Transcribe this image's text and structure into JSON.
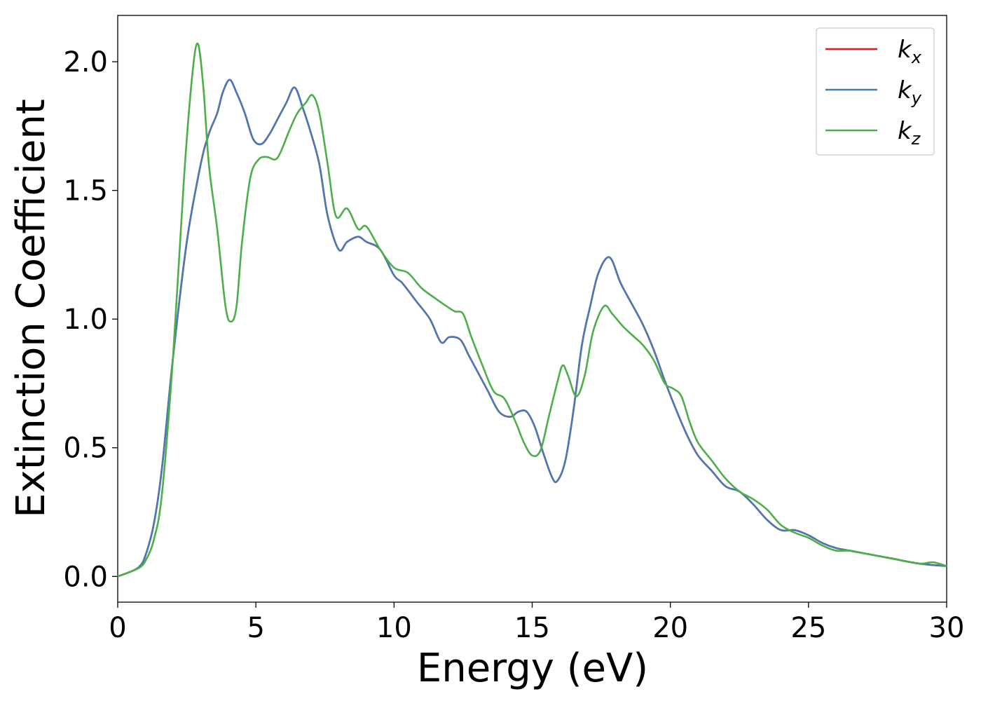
{
  "chart_data": {
    "type": "line",
    "xlabel": "Energy (eV)",
    "ylabel": "Extinction Coefficient",
    "xlim": [
      0,
      30
    ],
    "ylim": [
      -0.1,
      2.18
    ],
    "xticks": [
      "0",
      "5",
      "10",
      "15",
      "20",
      "25",
      "30"
    ],
    "yticks": [
      "0.0",
      "0.5",
      "1.0",
      "1.5",
      "2.0"
    ],
    "grid": false,
    "legend_position": "top-right",
    "series": [
      {
        "name": "k",
        "sub": "x",
        "color": "#e41a1c",
        "x": [
          0,
          0.5,
          0.8,
          1.0,
          1.3,
          1.6,
          2.0,
          2.5,
          3.0,
          3.3,
          3.6,
          3.8,
          4.05,
          4.3,
          4.6,
          4.9,
          5.2,
          5.5,
          5.8,
          6.1,
          6.4,
          6.7,
          7.0,
          7.3,
          7.6,
          8.0,
          8.3,
          8.7,
          9.0,
          9.5,
          10.0,
          10.3,
          10.8,
          11.3,
          11.7,
          12.0,
          12.4,
          12.7,
          13.0,
          13.4,
          13.8,
          14.2,
          14.5,
          14.8,
          15.1,
          15.4,
          15.7,
          15.9,
          16.2,
          16.5,
          16.8,
          17.1,
          17.4,
          17.8,
          18.2,
          18.6,
          19.0,
          19.4,
          19.8,
          20.2,
          20.6,
          21.0,
          21.5,
          22.0,
          22.5,
          23.0,
          23.5,
          24.0,
          24.5,
          25.0,
          25.5,
          26.0,
          26.5,
          27.0,
          28.0,
          29.0,
          30.0
        ],
        "y": [
          0.0,
          0.02,
          0.04,
          0.08,
          0.2,
          0.42,
          0.85,
          1.3,
          1.6,
          1.72,
          1.8,
          1.88,
          1.93,
          1.88,
          1.8,
          1.7,
          1.68,
          1.72,
          1.78,
          1.84,
          1.9,
          1.82,
          1.72,
          1.6,
          1.4,
          1.27,
          1.3,
          1.32,
          1.3,
          1.27,
          1.17,
          1.14,
          1.07,
          1.0,
          0.91,
          0.93,
          0.92,
          0.86,
          0.8,
          0.72,
          0.64,
          0.62,
          0.64,
          0.64,
          0.58,
          0.48,
          0.39,
          0.37,
          0.45,
          0.65,
          0.9,
          1.05,
          1.18,
          1.24,
          1.14,
          1.06,
          0.98,
          0.88,
          0.76,
          0.65,
          0.55,
          0.47,
          0.41,
          0.35,
          0.33,
          0.28,
          0.22,
          0.18,
          0.18,
          0.16,
          0.13,
          0.11,
          0.1,
          0.09,
          0.07,
          0.05,
          0.04
        ]
      },
      {
        "name": "k",
        "sub": "y",
        "color": "#4a7ab5",
        "x": [
          0,
          0.5,
          0.8,
          1.0,
          1.3,
          1.6,
          2.0,
          2.5,
          3.0,
          3.3,
          3.6,
          3.8,
          4.05,
          4.3,
          4.6,
          4.9,
          5.2,
          5.5,
          5.8,
          6.1,
          6.4,
          6.7,
          7.0,
          7.3,
          7.6,
          8.0,
          8.3,
          8.7,
          9.0,
          9.5,
          10.0,
          10.3,
          10.8,
          11.3,
          11.7,
          12.0,
          12.4,
          12.7,
          13.0,
          13.4,
          13.8,
          14.2,
          14.5,
          14.8,
          15.1,
          15.4,
          15.7,
          15.9,
          16.2,
          16.5,
          16.8,
          17.1,
          17.4,
          17.8,
          18.2,
          18.6,
          19.0,
          19.4,
          19.8,
          20.2,
          20.6,
          21.0,
          21.5,
          22.0,
          22.5,
          23.0,
          23.5,
          24.0,
          24.5,
          25.0,
          25.5,
          26.0,
          26.5,
          27.0,
          28.0,
          29.0,
          30.0
        ],
        "y": [
          0.0,
          0.02,
          0.04,
          0.08,
          0.2,
          0.42,
          0.85,
          1.3,
          1.6,
          1.72,
          1.8,
          1.88,
          1.93,
          1.88,
          1.8,
          1.7,
          1.68,
          1.72,
          1.78,
          1.84,
          1.9,
          1.82,
          1.72,
          1.6,
          1.4,
          1.27,
          1.3,
          1.32,
          1.3,
          1.27,
          1.17,
          1.14,
          1.07,
          1.0,
          0.91,
          0.93,
          0.92,
          0.86,
          0.8,
          0.72,
          0.64,
          0.62,
          0.64,
          0.64,
          0.58,
          0.48,
          0.39,
          0.37,
          0.45,
          0.65,
          0.9,
          1.05,
          1.18,
          1.24,
          1.14,
          1.06,
          0.98,
          0.88,
          0.76,
          0.65,
          0.55,
          0.47,
          0.41,
          0.35,
          0.33,
          0.28,
          0.22,
          0.18,
          0.18,
          0.16,
          0.13,
          0.11,
          0.1,
          0.09,
          0.07,
          0.05,
          0.04
        ]
      },
      {
        "name": "k",
        "sub": "z",
        "color": "#4daf4a",
        "x": [
          0,
          0.5,
          0.8,
          1.0,
          1.3,
          1.6,
          2.0,
          2.4,
          2.7,
          2.9,
          3.1,
          3.3,
          3.6,
          3.9,
          4.1,
          4.3,
          4.5,
          4.8,
          5.1,
          5.4,
          5.7,
          5.9,
          6.2,
          6.5,
          6.8,
          7.05,
          7.3,
          7.6,
          7.9,
          8.3,
          8.7,
          9.0,
          9.5,
          10.0,
          10.5,
          11.0,
          11.5,
          11.9,
          12.2,
          12.5,
          12.8,
          13.2,
          13.6,
          14.0,
          14.4,
          14.7,
          15.0,
          15.3,
          15.6,
          15.9,
          16.1,
          16.3,
          16.6,
          16.9,
          17.2,
          17.6,
          17.9,
          18.3,
          18.7,
          19.0,
          19.4,
          19.8,
          20.1,
          20.4,
          20.7,
          21.0,
          21.5,
          22.0,
          22.5,
          23.0,
          23.5,
          24.0,
          24.5,
          25.0,
          25.5,
          26.0,
          26.5,
          27.0,
          28.0,
          29.0,
          29.5,
          30.0
        ],
        "y": [
          0.0,
          0.02,
          0.035,
          0.06,
          0.14,
          0.32,
          0.85,
          1.55,
          1.95,
          2.07,
          1.9,
          1.6,
          1.35,
          1.05,
          0.99,
          1.05,
          1.3,
          1.55,
          1.62,
          1.63,
          1.62,
          1.65,
          1.73,
          1.8,
          1.84,
          1.87,
          1.8,
          1.6,
          1.4,
          1.43,
          1.35,
          1.36,
          1.27,
          1.2,
          1.18,
          1.12,
          1.08,
          1.05,
          1.03,
          1.02,
          0.93,
          0.82,
          0.72,
          0.69,
          0.6,
          0.52,
          0.47,
          0.49,
          0.62,
          0.75,
          0.82,
          0.78,
          0.7,
          0.78,
          0.95,
          1.05,
          1.02,
          0.97,
          0.93,
          0.9,
          0.84,
          0.75,
          0.73,
          0.7,
          0.6,
          0.52,
          0.45,
          0.38,
          0.33,
          0.3,
          0.26,
          0.2,
          0.17,
          0.15,
          0.12,
          0.1,
          0.1,
          0.09,
          0.07,
          0.05,
          0.055,
          0.04
        ]
      }
    ]
  }
}
